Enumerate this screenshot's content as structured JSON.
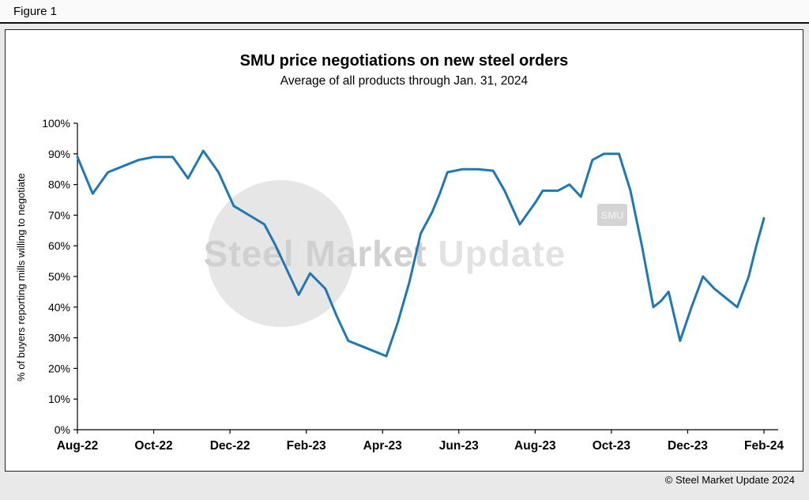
{
  "figure": {
    "label": "Figure 1"
  },
  "footer": {
    "copyright": "© Steel Market Update 2024"
  },
  "watermark": {
    "brand_bold": "Steel Market",
    "brand_light": " Update",
    "badge": "SMU"
  },
  "chart_data": {
    "type": "line",
    "title": "SMU price negotiations on new steel orders",
    "subtitle": "Average of all products through Jan. 31, 2024",
    "xlabel": "",
    "ylabel": "% of buyers reporting mills willing to negotiate",
    "ylim": [
      0,
      100
    ],
    "xlim": [
      0,
      18
    ],
    "x_unit": "months since Aug-2022",
    "grid": false,
    "legend": false,
    "line_color": "#1F77B4",
    "axis_color": "#000000",
    "x_ticks": [
      {
        "pos": 0,
        "label": "Aug-22"
      },
      {
        "pos": 2,
        "label": "Oct-22"
      },
      {
        "pos": 4,
        "label": "Dec-22"
      },
      {
        "pos": 6,
        "label": "Feb-23"
      },
      {
        "pos": 8,
        "label": "Apr-23"
      },
      {
        "pos": 10,
        "label": "Jun-23"
      },
      {
        "pos": 12,
        "label": "Aug-23"
      },
      {
        "pos": 14,
        "label": "Oct-23"
      },
      {
        "pos": 16,
        "label": "Dec-23"
      },
      {
        "pos": 18,
        "label": "Feb-24"
      }
    ],
    "y_ticks": [
      {
        "value": 0,
        "label": "0%"
      },
      {
        "value": 10,
        "label": "10%"
      },
      {
        "value": 20,
        "label": "20%"
      },
      {
        "value": 30,
        "label": "30%"
      },
      {
        "value": 40,
        "label": "40%"
      },
      {
        "value": 50,
        "label": "50%"
      },
      {
        "value": 60,
        "label": "60%"
      },
      {
        "value": 70,
        "label": "70%"
      },
      {
        "value": 80,
        "label": "80%"
      },
      {
        "value": 90,
        "label": "90%"
      },
      {
        "value": 100,
        "label": "100%"
      }
    ],
    "series": [
      {
        "name": "% of buyers reporting mills willing to negotiate",
        "color": "#1F77B4",
        "points": [
          [
            0.0,
            89
          ],
          [
            0.4,
            77
          ],
          [
            0.8,
            84
          ],
          [
            1.2,
            86
          ],
          [
            1.6,
            88
          ],
          [
            2.0,
            89
          ],
          [
            2.5,
            89
          ],
          [
            2.9,
            82
          ],
          [
            3.3,
            91
          ],
          [
            3.7,
            84
          ],
          [
            4.1,
            73
          ],
          [
            4.5,
            70
          ],
          [
            4.9,
            67
          ],
          [
            5.2,
            60
          ],
          [
            5.5,
            52
          ],
          [
            5.8,
            44
          ],
          [
            6.1,
            51
          ],
          [
            6.5,
            46
          ],
          [
            6.8,
            37
          ],
          [
            7.1,
            29
          ],
          [
            7.5,
            27
          ],
          [
            7.9,
            25
          ],
          [
            8.1,
            24
          ],
          [
            8.4,
            35
          ],
          [
            8.7,
            48
          ],
          [
            9.0,
            64
          ],
          [
            9.3,
            71
          ],
          [
            9.5,
            77
          ],
          [
            9.7,
            84
          ],
          [
            10.1,
            85
          ],
          [
            10.5,
            85
          ],
          [
            10.9,
            84.5
          ],
          [
            11.2,
            78
          ],
          [
            11.6,
            67
          ],
          [
            12.0,
            74
          ],
          [
            12.2,
            78
          ],
          [
            12.6,
            78
          ],
          [
            12.9,
            80
          ],
          [
            13.2,
            76
          ],
          [
            13.5,
            88
          ],
          [
            13.8,
            90
          ],
          [
            14.2,
            90
          ],
          [
            14.5,
            78
          ],
          [
            14.8,
            60
          ],
          [
            15.1,
            40
          ],
          [
            15.3,
            42
          ],
          [
            15.5,
            45
          ],
          [
            15.8,
            29
          ],
          [
            16.1,
            40
          ],
          [
            16.4,
            50
          ],
          [
            16.7,
            46
          ],
          [
            17.0,
            43
          ],
          [
            17.3,
            40
          ],
          [
            17.6,
            50
          ],
          [
            17.8,
            60
          ],
          [
            18.0,
            69
          ]
        ]
      }
    ]
  }
}
